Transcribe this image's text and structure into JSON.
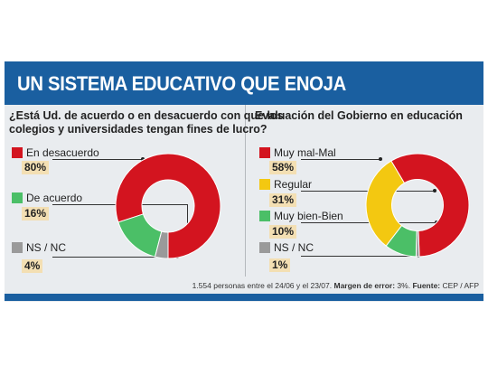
{
  "title": "UN SISTEMA EDUCATIVO QUE ENOJA",
  "colors": {
    "red": "#d3141f",
    "green": "#4bbf67",
    "gray": "#9a9a9a",
    "yellow": "#f3c811",
    "header_blue": "#1a5fa0"
  },
  "chart_data": [
    {
      "type": "pie",
      "title": "¿Está Ud. de acuerdo o en desacuerdo con que los colegios y universidades tengan fines de lucro?",
      "title_line1": "¿Está Ud. de acuerdo o en desacuerdo con que los",
      "title_line2": "colegios y universidades tengan fines de lucro?",
      "categories": [
        "En desacuerdo",
        "De acuerdo",
        "NS / NC"
      ],
      "values": [
        80,
        16,
        4
      ],
      "labels": [
        "80%",
        "16%",
        "4%"
      ],
      "colors": [
        "#d3141f",
        "#4bbf67",
        "#9a9a9a"
      ]
    },
    {
      "type": "pie",
      "title": "Evaluación del Gobierno en educación",
      "categories": [
        "Muy mal-Mal",
        "Regular",
        "Muy bien-Bien",
        "NS / NC"
      ],
      "values": [
        58,
        31,
        10,
        1
      ],
      "labels": [
        "58%",
        "31%",
        "10%",
        "1%"
      ],
      "colors": [
        "#d3141f",
        "#f3c811",
        "#4bbf67",
        "#9a9a9a"
      ]
    }
  ],
  "footnote": {
    "main": "1.554 personas entre el 24/06 y el 23/07.",
    "margin_label": "Margen de error:",
    "margin_value": "3%.",
    "source_label": "Fuente:",
    "source_value": "CEP / AFP"
  }
}
